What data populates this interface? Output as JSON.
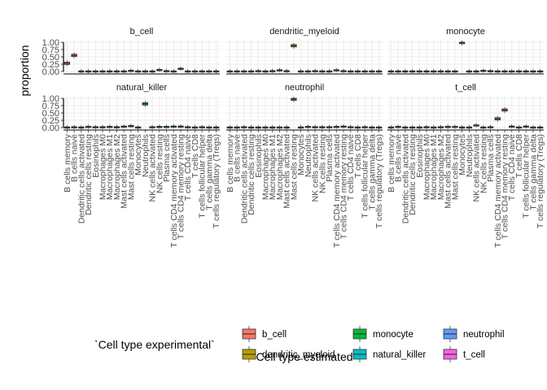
{
  "chart_data": {
    "type": "boxplot",
    "xlabel": "`Cell type estimated`",
    "ylabel": "proportion",
    "ylim": [
      0,
      1
    ],
    "yticks": [
      "0.00",
      "0.25",
      "0.50",
      "0.75",
      "1.00"
    ],
    "categories": [
      "B cells memory",
      "B cells naive",
      "Dendritic cells activated",
      "Dendritic cells resting",
      "Eosinophils",
      "Macrophages M0",
      "Macrophages M1",
      "Macrophages M2",
      "Mast cells activated",
      "Mast cells resting",
      "Monocytes",
      "Neutrophils",
      "NK cells activated",
      "NK cells resting",
      "Plasma cells",
      "T cells CD4 memory activated",
      "T cells CD4 memory resting",
      "T cells CD4 naive",
      "T cells CD8",
      "T cells follicular helper",
      "T cells gamma delta",
      "T cells regulatory (Tregs)"
    ],
    "legend": {
      "title": "`Cell type experimental`",
      "position": "bottom",
      "items": [
        {
          "label": "b_cell",
          "color": "#F8766D"
        },
        {
          "label": "dendritic_myeloid",
          "color": "#B79F00"
        },
        {
          "label": "monocyte",
          "color": "#00BA38"
        },
        {
          "label": "natural_killer",
          "color": "#00BFC4"
        },
        {
          "label": "neutrophil",
          "color": "#619CFF"
        },
        {
          "label": "t_cell",
          "color": "#F564E3"
        }
      ]
    },
    "panels": [
      {
        "title": "b_cell",
        "color": "#F8766D",
        "medians": [
          0.28,
          0.55,
          0.01,
          0.01,
          0.01,
          0.01,
          0.01,
          0.01,
          0.01,
          0.03,
          0.01,
          0.01,
          0.01,
          0.06,
          0.02,
          0.01,
          0.1,
          0.01,
          0.01,
          0.01,
          0.01,
          0.01
        ]
      },
      {
        "title": "dendritic_myeloid",
        "color": "#B79F00",
        "medians": [
          0.01,
          0.01,
          0.01,
          0.01,
          0.02,
          0.01,
          0.02,
          0.05,
          0.02,
          0.88,
          0.01,
          0.01,
          0.02,
          0.01,
          0.01,
          0.05,
          0.02,
          0.01,
          0.01,
          0.01,
          0.01,
          0.01
        ]
      },
      {
        "title": "monocyte",
        "color": "#00BA38",
        "medians": [
          0.01,
          0.01,
          0.01,
          0.01,
          0.01,
          0.01,
          0.01,
          0.01,
          0.01,
          0.01,
          0.99,
          0.01,
          0.01,
          0.03,
          0.02,
          0.01,
          0.01,
          0.01,
          0.01,
          0.01,
          0.01,
          0.01
        ]
      },
      {
        "title": "natural_killer",
        "color": "#00BFC4",
        "medians": [
          0.01,
          0.02,
          0.01,
          0.03,
          0.02,
          0.02,
          0.03,
          0.02,
          0.04,
          0.06,
          0.01,
          0.81,
          0.02,
          0.03,
          0.03,
          0.04,
          0.04,
          0.02,
          0.01,
          0.02,
          0.01,
          0.01
        ]
      },
      {
        "title": "neutrophil",
        "color": "#619CFF",
        "medians": [
          0.01,
          0.01,
          0.02,
          0.01,
          0.01,
          0.01,
          0.01,
          0.01,
          0.01,
          0.97,
          0.01,
          0.03,
          0.02,
          0.02,
          0.02,
          0.03,
          0.04,
          0.02,
          0.01,
          0.02,
          0.01,
          0.01
        ]
      },
      {
        "title": "t_cell",
        "color": "#F564E3",
        "medians": [
          0.01,
          0.03,
          0.01,
          0.01,
          0.01,
          0.02,
          0.01,
          0.02,
          0.03,
          0.03,
          0.01,
          0.01,
          0.08,
          0.01,
          0.02,
          0.3,
          0.6,
          0.04,
          0.01,
          0.04,
          0.01,
          0.01
        ]
      }
    ]
  }
}
